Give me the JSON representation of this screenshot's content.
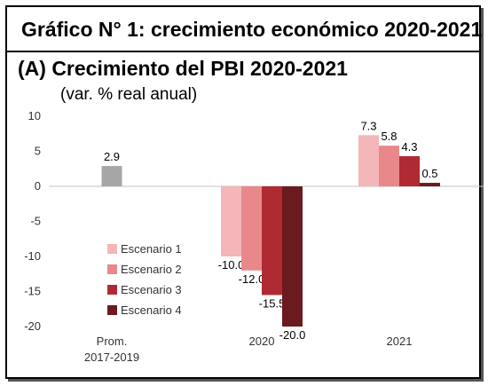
{
  "header": {
    "title": "Gráfico N° 1: crecimiento económico 2020-2021"
  },
  "panel": {
    "title": "(A)  Crecimiento del PBI 2020-2021",
    "subtitle": "(var. % real anual)"
  },
  "colors": {
    "Prom": "#a6a6a6",
    "Escenario 1": "#f4b6b8",
    "Escenario 2": "#e8888b",
    "Escenario 3": "#b02a33",
    "Escenario 4": "#6b1a1e",
    "axis": "#c0c0c0"
  },
  "chart_data": {
    "type": "bar",
    "categories": [
      [
        "Prom.",
        "2017-2019"
      ],
      [
        "2020"
      ],
      [
        "2021"
      ]
    ],
    "ylim": [
      -20,
      10
    ],
    "yticks": [
      10,
      5,
      0,
      -5,
      -10,
      -15,
      -20
    ],
    "grid": false,
    "legend_position": "bottom-left",
    "prom": {
      "category_index": 0,
      "value": 2.9,
      "label": "2.9"
    },
    "series": [
      {
        "name": "Escenario 1",
        "values": [
          null,
          -10.0,
          7.3
        ],
        "labels": [
          null,
          "-10.0",
          "7.3"
        ]
      },
      {
        "name": "Escenario 2",
        "values": [
          null,
          -12.0,
          5.8
        ],
        "labels": [
          null,
          "-12.0",
          "5.8"
        ]
      },
      {
        "name": "Escenario 3",
        "values": [
          null,
          -15.5,
          4.3
        ],
        "labels": [
          null,
          "-15.5",
          "4.3"
        ]
      },
      {
        "name": "Escenario 4",
        "values": [
          null,
          -20.0,
          0.5
        ],
        "labels": [
          null,
          "-20.0",
          "0.5"
        ]
      }
    ]
  }
}
